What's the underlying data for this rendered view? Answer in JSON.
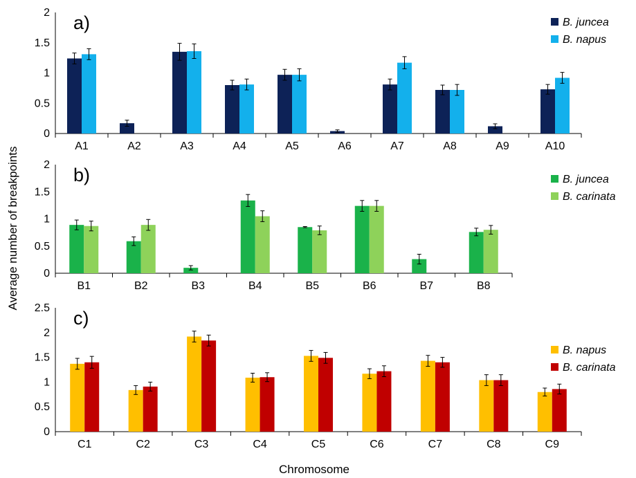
{
  "ylabel": "Average number of breakpoints",
  "xlabel": "Chromosome",
  "chart_data": [
    {
      "type": "bar",
      "panel_label": "a)",
      "categories": [
        "A1",
        "A2",
        "A3",
        "A4",
        "A5",
        "A6",
        "A7",
        "A8",
        "A9",
        "A10"
      ],
      "ylim": [
        0,
        2
      ],
      "yticks": [
        0,
        0.5,
        1,
        1.5,
        2
      ],
      "ytick_labels": [
        "0",
        "0.5",
        "1",
        "1.5",
        "2"
      ],
      "legend_position": "top-right",
      "series": [
        {
          "name": "B. juncea",
          "color": "#0d2257",
          "values": [
            1.24,
            0.17,
            1.35,
            0.8,
            0.97,
            0.04,
            0.81,
            0.72,
            0.12,
            0.73
          ],
          "errors": [
            0.09,
            0.05,
            0.14,
            0.08,
            0.09,
            0.02,
            0.09,
            0.08,
            0.04,
            0.08
          ]
        },
        {
          "name": "B. napus",
          "color": "#13b0ec",
          "values": [
            1.31,
            0,
            1.36,
            0.81,
            0.97,
            0,
            1.17,
            0.72,
            0,
            0.92
          ],
          "errors": [
            0.09,
            0,
            0.12,
            0.09,
            0.1,
            0,
            0.1,
            0.09,
            0,
            0.09
          ]
        }
      ]
    },
    {
      "type": "bar",
      "panel_label": "b)",
      "categories": [
        "B1",
        "B2",
        "B3",
        "B4",
        "B5",
        "B6",
        "B7",
        "B8"
      ],
      "ylim": [
        0,
        2
      ],
      "yticks": [
        0,
        0.5,
        1,
        1.5,
        2
      ],
      "ytick_labels": [
        "0",
        "0.5",
        "1",
        "1.5",
        "2"
      ],
      "legend_position": "top-right",
      "series": [
        {
          "name": "B. juncea",
          "color": "#1ab24a",
          "values": [
            0.89,
            0.59,
            0.1,
            1.34,
            0.85,
            1.24,
            0.26,
            0.76
          ],
          "errors": [
            0.09,
            0.08,
            0.04,
            0.11,
            0.01,
            0.1,
            0.09,
            0.07
          ]
        },
        {
          "name": "B. carinata",
          "color": "#8ed25a",
          "values": [
            0.87,
            0.89,
            0,
            1.05,
            0.79,
            1.24,
            0,
            0.8
          ],
          "errors": [
            0.09,
            0.1,
            0,
            0.1,
            0.08,
            0.1,
            0,
            0.08
          ]
        }
      ]
    },
    {
      "type": "bar",
      "panel_label": "c)",
      "categories": [
        "C1",
        "C2",
        "C3",
        "C4",
        "C5",
        "C6",
        "C7",
        "C8",
        "C9"
      ],
      "ylim": [
        0,
        2.5
      ],
      "yticks": [
        0,
        0.5,
        1,
        1.5,
        2,
        2.5
      ],
      "ytick_labels": [
        "0",
        "0.5",
        "1",
        "1.5",
        "2",
        "2.5"
      ],
      "legend_position": "right",
      "series": [
        {
          "name": "B. napus",
          "color": "#ffbf00",
          "values": [
            1.37,
            0.84,
            1.92,
            1.09,
            1.53,
            1.17,
            1.43,
            1.04,
            0.8
          ],
          "errors": [
            0.11,
            0.09,
            0.11,
            0.09,
            0.11,
            0.1,
            0.11,
            0.11,
            0.08
          ]
        },
        {
          "name": "B. carinata",
          "color": "#c00000",
          "values": [
            1.4,
            0.91,
            1.84,
            1.1,
            1.49,
            1.22,
            1.4,
            1.04,
            0.86
          ],
          "errors": [
            0.12,
            0.09,
            0.11,
            0.09,
            0.11,
            0.11,
            0.1,
            0.11,
            0.1
          ]
        }
      ]
    }
  ]
}
